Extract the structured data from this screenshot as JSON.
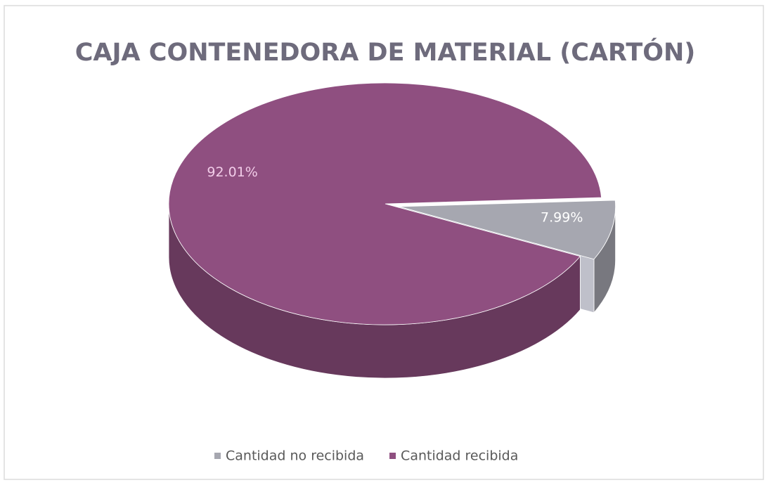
{
  "chart_data": {
    "type": "pie3d",
    "title": "CAJA CONTENEDORA DE MATERIAL (CARTÓN)",
    "categories": [
      "Cantidad no recibida",
      "Cantidad recibida"
    ],
    "values": [
      7.99,
      92.01
    ],
    "value_labels": [
      "7.99%",
      "92.01%"
    ],
    "colors": [
      "#a6a7b0",
      "#8f4f80"
    ],
    "legend": "bottom"
  }
}
